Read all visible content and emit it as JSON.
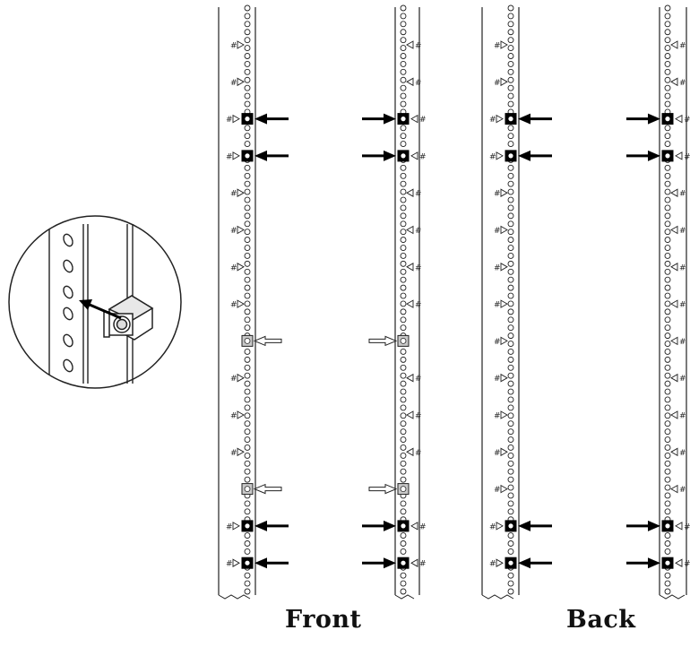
{
  "labels": {
    "front": "Front",
    "back": "Back",
    "unit_marker": "#"
  },
  "rails": {
    "hole_count": 74,
    "unit_marker_count": 15,
    "front": {
      "cage_nut_units": [
        2,
        3,
        13,
        14
      ],
      "reference_units": [
        8,
        12
      ]
    },
    "back": {
      "cage_nut_units": [
        2,
        3,
        13,
        14
      ],
      "reference_units": []
    }
  },
  "icons": {
    "filled_arrow": "arrow-left-icon",
    "hollow_arrow": "hollow-arrow-icon",
    "cage_nut": "cage-nut-icon",
    "unit_triangle": "triangle-marker-icon"
  },
  "colors": {
    "line": "#222222",
    "fill": "#000000",
    "hollow_fill": "#c8c8c8",
    "background": "#ffffff"
  }
}
